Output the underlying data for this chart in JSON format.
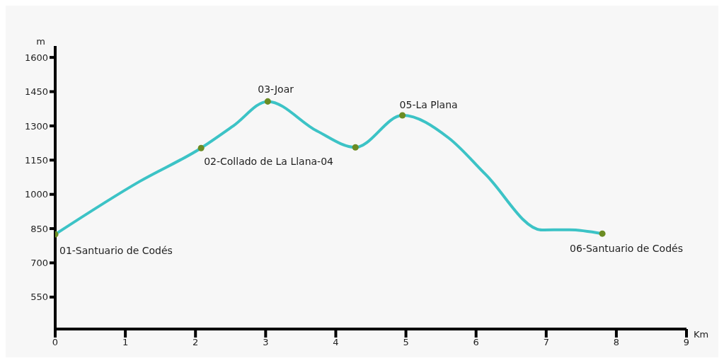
{
  "chart_data": {
    "type": "line",
    "xlabel": "Km",
    "ylabel": "m",
    "xlim": [
      0,
      9
    ],
    "xticks": [
      0,
      1,
      2,
      3,
      4,
      5,
      6,
      7,
      8,
      9
    ],
    "ylim": [
      410,
      1650
    ],
    "yticks": [
      550,
      700,
      850,
      1000,
      1150,
      1300,
      1450,
      1600
    ],
    "grid": false,
    "series": [
      {
        "color": "#3cc3c6",
        "marker": "none",
        "x": [
          0,
          1.2,
          2.08,
          2.54,
          3.03,
          3.73,
          4.28,
          4.95,
          5.61,
          6.14,
          6.94,
          7.33,
          7.8
        ],
        "values": [
          825,
          1056,
          1203,
          1300,
          1407,
          1278,
          1206,
          1346,
          1247,
          1086,
          844,
          845,
          828
        ]
      },
      {
        "type": "scatter",
        "color": "#6b8c23",
        "marker": "circle",
        "x": [
          0,
          2.08,
          3.03,
          4.28,
          4.95,
          7.8
        ],
        "values": [
          825,
          1203,
          1407,
          1206,
          1346,
          828
        ]
      }
    ],
    "annotations": [
      {
        "text": "01-Santuario de Codés",
        "x": 0,
        "y": 825
      },
      {
        "text": "02-Collado de La Llana-04",
        "x": 2.08,
        "y": 1203
      },
      {
        "text": "03-Joar",
        "x": 3.03,
        "y": 1407
      },
      {
        "text": "05-La Plana",
        "x": 4.95,
        "y": 1346
      },
      {
        "text": "06-Santuario de Codés",
        "x": 7.8,
        "y": 828
      }
    ]
  }
}
